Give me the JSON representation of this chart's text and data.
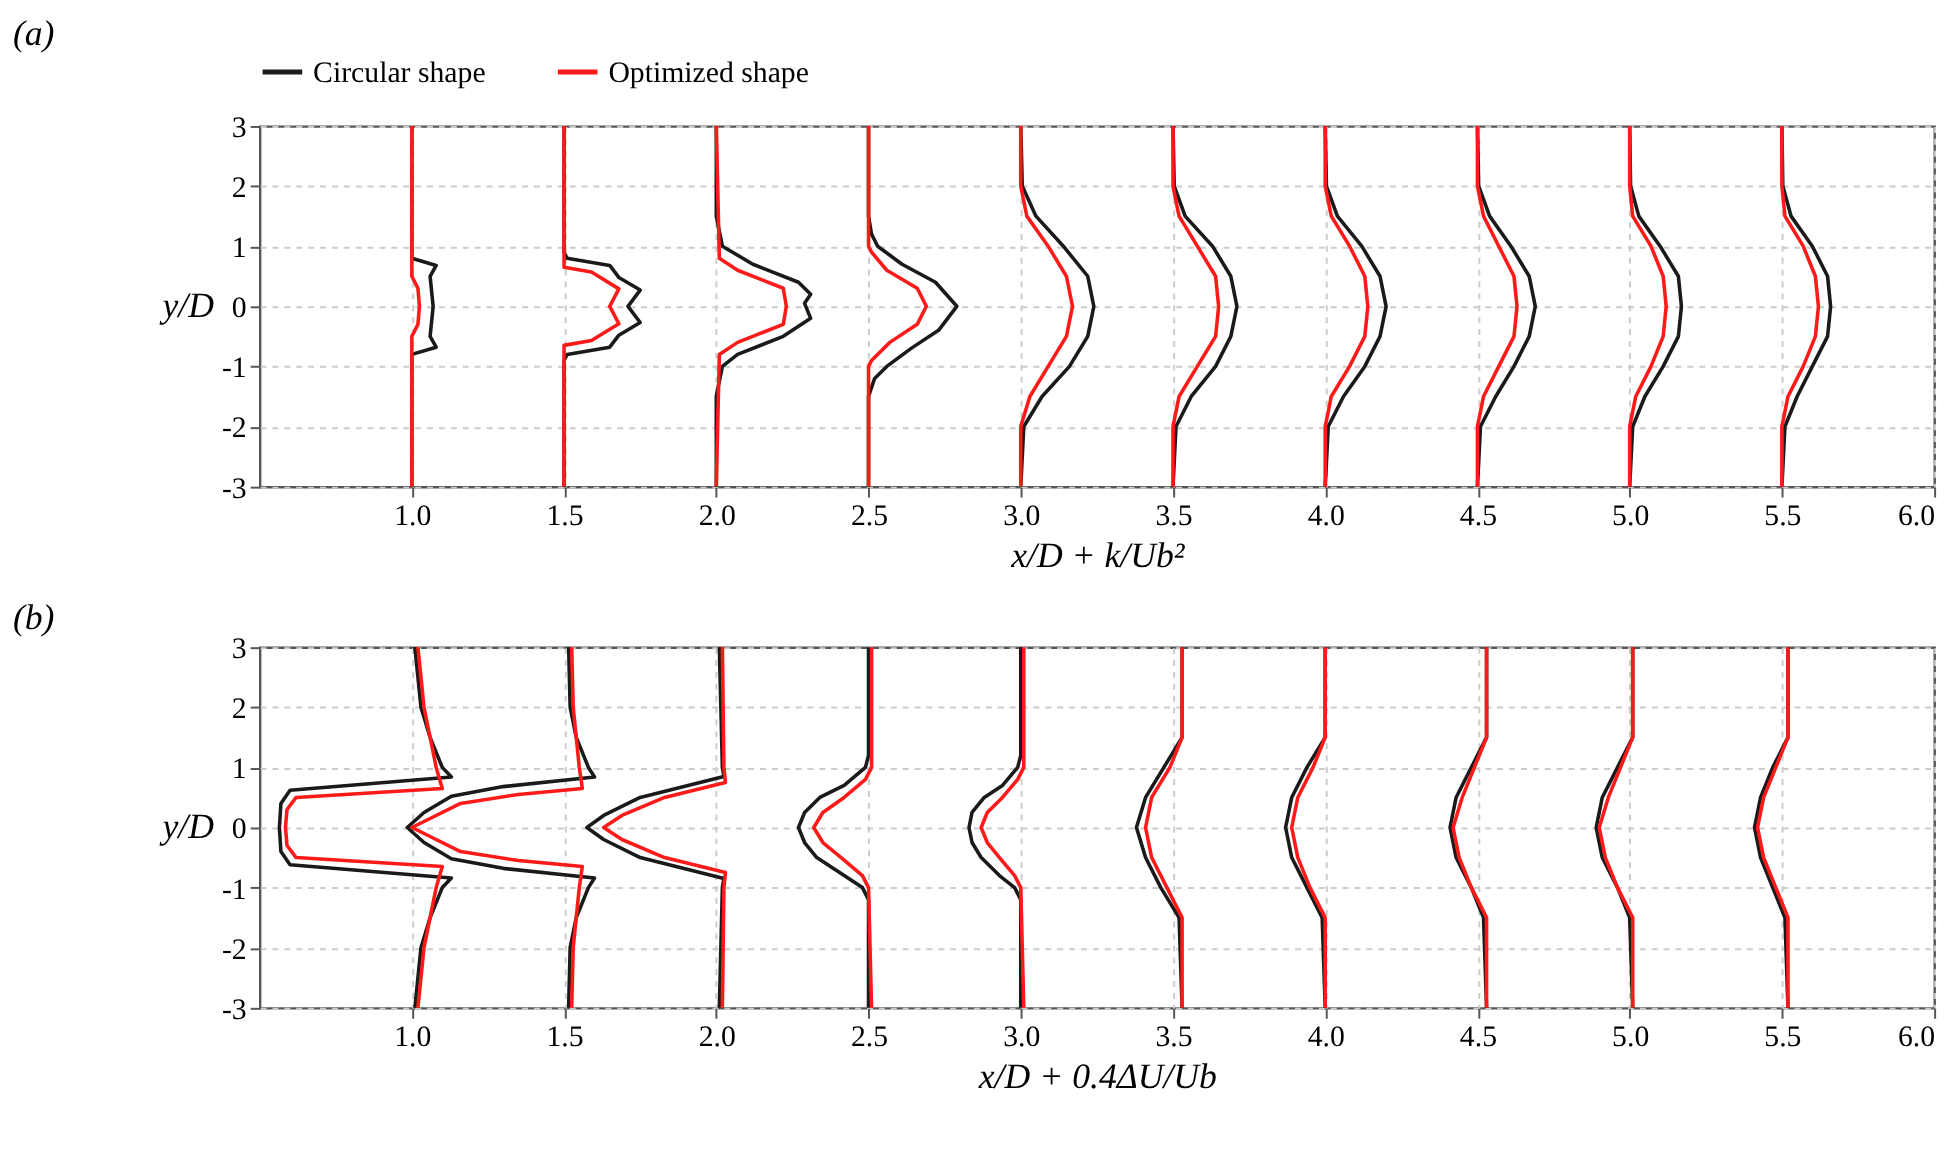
{
  "chart_data": [
    {
      "type": "line",
      "title": "(a)",
      "xlabel": "x/D + k/Ub²",
      "ylabel": "y/D",
      "xlim": [
        0.5,
        6.0
      ],
      "xticks": [
        {
          "value": 1,
          "label": "1.0"
        },
        1.5,
        {
          "value": 2,
          "label": "2.0"
        },
        2.5,
        {
          "value": 3,
          "label": "3.0"
        },
        3.5,
        {
          "value": 4,
          "label": "4.0"
        },
        4.5,
        {
          "value": 5,
          "label": "5.0"
        },
        5.5,
        {
          "value": 6,
          "label": "6.0"
        }
      ],
      "ylim": [
        -3,
        3
      ],
      "yticks": [
        -3,
        -2,
        -1,
        0,
        1,
        2,
        3
      ],
      "grid": true,
      "legend": "top",
      "line_style": "solid",
      "series": [
        {
          "name": "Circular shape",
          "color": "#1a1a1a",
          "x": [
            1.0,
            1.0,
            1.08,
            1.06,
            1.07,
            1.06,
            1.08,
            1.0,
            1.0,
            null,
            1.5,
            1.5,
            1.51,
            1.65,
            1.68,
            1.75,
            1.71,
            1.75,
            1.68,
            1.65,
            1.51,
            1.5,
            1.5,
            null,
            2.0,
            2.0,
            2.02,
            2.12,
            2.27,
            2.31,
            2.29,
            2.31,
            2.22,
            2.07,
            2.02,
            2.0,
            2.0,
            null,
            2.5,
            2.5,
            2.51,
            2.53,
            2.61,
            2.72,
            2.79,
            2.73,
            2.64,
            2.56,
            2.52,
            2.5,
            2.5,
            null,
            3.0,
            3.005,
            3.05,
            3.14,
            3.22,
            3.24,
            3.22,
            3.16,
            3.07,
            3.01,
            3.0,
            null,
            3.5,
            3.504,
            3.54,
            3.63,
            3.69,
            3.71,
            3.69,
            3.64,
            3.56,
            3.51,
            3.5,
            null,
            4.0,
            4.004,
            4.04,
            4.12,
            4.18,
            4.2,
            4.18,
            4.13,
            4.06,
            4.01,
            4.0,
            null,
            4.5,
            4.504,
            4.54,
            4.61,
            4.67,
            4.69,
            4.67,
            4.62,
            4.56,
            4.51,
            4.5,
            null,
            5.0,
            5.003,
            5.03,
            5.1,
            5.16,
            5.17,
            5.16,
            5.11,
            5.05,
            5.01,
            5.0,
            null,
            5.5,
            5.503,
            5.53,
            5.6,
            5.65,
            5.66,
            5.65,
            5.6,
            5.55,
            5.51,
            5.5
          ],
          "values": [
            3,
            0.8,
            0.68,
            0.5,
            0,
            -0.5,
            -0.68,
            -0.8,
            -3,
            null,
            3,
            0.9,
            0.8,
            0.68,
            0.48,
            0.27,
            0,
            -0.27,
            -0.48,
            -0.68,
            -0.8,
            -0.9,
            -3,
            null,
            3,
            1.5,
            1,
            0.7,
            0.4,
            0.2,
            0.05,
            -0.2,
            -0.5,
            -0.8,
            -1,
            -1.5,
            -3,
            null,
            3,
            1.5,
            1.2,
            1,
            0.7,
            0.4,
            0,
            -0.4,
            -0.7,
            -1,
            -1.2,
            -1.5,
            -3,
            null,
            3,
            2,
            1.5,
            1,
            0.5,
            0,
            -0.5,
            -1,
            -1.5,
            -2,
            -3,
            null,
            3,
            2,
            1.5,
            1,
            0.5,
            0,
            -0.5,
            -1,
            -1.5,
            -2,
            -3,
            null,
            3,
            2,
            1.5,
            1,
            0.5,
            0,
            -0.5,
            -1,
            -1.5,
            -2,
            -3,
            null,
            3,
            2,
            1.5,
            1,
            0.5,
            0,
            -0.5,
            -1,
            -1.5,
            -2,
            -3,
            null,
            3,
            2,
            1.5,
            1,
            0.5,
            0,
            -0.5,
            -1,
            -1.5,
            -2,
            -3,
            null,
            3,
            2,
            1.5,
            1,
            0.5,
            0,
            -0.5,
            -1,
            -1.5,
            -2,
            -3
          ]
        },
        {
          "name": "Optimized shape",
          "color": "#ff1a1a",
          "x": [
            1.0,
            1.0,
            1.02,
            1.025,
            1.02,
            1.0,
            1.0,
            null,
            1.5,
            1.5,
            1.59,
            1.68,
            1.65,
            1.68,
            1.59,
            1.5,
            1.5,
            null,
            2.0,
            2.01,
            2.07,
            2.22,
            2.23,
            2.22,
            2.07,
            2.01,
            2.0,
            null,
            2.5,
            2.5,
            2.51,
            2.56,
            2.66,
            2.69,
            2.66,
            2.57,
            2.51,
            2.5,
            2.5,
            null,
            3.0,
            3.0,
            3.02,
            3.09,
            3.15,
            3.17,
            3.15,
            3.09,
            3.03,
            3.0,
            3.0,
            null,
            3.5,
            3.5,
            3.52,
            3.58,
            3.64,
            3.65,
            3.64,
            3.58,
            3.52,
            3.5,
            3.5,
            null,
            4.0,
            4.0,
            4.02,
            4.08,
            4.13,
            4.14,
            4.13,
            4.08,
            4.02,
            4.0,
            4.0,
            null,
            4.5,
            4.5,
            4.52,
            4.57,
            4.62,
            4.63,
            4.62,
            4.57,
            4.52,
            4.5,
            4.5,
            null,
            5.0,
            5.0,
            5.01,
            5.07,
            5.11,
            5.12,
            5.11,
            5.07,
            5.02,
            5.0,
            5.0,
            null,
            5.5,
            5.5,
            5.51,
            5.57,
            5.61,
            5.62,
            5.61,
            5.57,
            5.52,
            5.5,
            5.5
          ],
          "values": [
            3,
            0.5,
            0.3,
            0,
            -0.3,
            -0.5,
            -3,
            null,
            3,
            0.65,
            0.57,
            0.29,
            0,
            -0.29,
            -0.57,
            -0.65,
            -3,
            null,
            3,
            0.8,
            0.6,
            0.3,
            0,
            -0.3,
            -0.6,
            -0.8,
            -3,
            null,
            3,
            1,
            0.9,
            0.6,
            0.3,
            0,
            -0.3,
            -0.6,
            -0.9,
            -1,
            -3,
            null,
            3,
            2,
            1.5,
            1,
            0.5,
            0,
            -0.5,
            -1,
            -1.5,
            -2,
            -3,
            null,
            3,
            2,
            1.5,
            1,
            0.5,
            0,
            -0.5,
            -1,
            -1.5,
            -2,
            -3,
            null,
            3,
            2,
            1.5,
            1,
            0.5,
            0,
            -0.5,
            -1,
            -1.5,
            -2,
            -3,
            null,
            3,
            2,
            1.5,
            1,
            0.5,
            0,
            -0.5,
            -1,
            -1.5,
            -2,
            -3,
            null,
            3,
            2,
            1.5,
            1,
            0.5,
            0,
            -0.5,
            -1,
            -1.5,
            -2,
            -3,
            null,
            3,
            2,
            1.5,
            1,
            0.5,
            0,
            -0.5,
            -1,
            -1.5,
            -2,
            -3
          ]
        }
      ]
    },
    {
      "type": "line",
      "title": "(b)",
      "xlabel": "x/D + 0.4ΔU/Ub",
      "ylabel": "y/D",
      "xlim": [
        0.5,
        6.0
      ],
      "xticks": [
        {
          "value": 1,
          "label": "1.0"
        },
        1.5,
        {
          "value": 2,
          "label": "2.0"
        },
        2.5,
        {
          "value": 3,
          "label": "3.0"
        },
        3.5,
        {
          "value": 4,
          "label": "4.0"
        },
        4.5,
        {
          "value": 5,
          "label": "5.0"
        },
        5.5,
        {
          "value": 6,
          "label": "6.0"
        }
      ],
      "ylim": [
        -3,
        3
      ],
      "yticks": [
        -3,
        -2,
        -1,
        0,
        1,
        2,
        3
      ],
      "grid": true,
      "line_style": "solid",
      "series": [
        {
          "color": "#1a1a1a",
          "x": [
            1.01,
            1.03,
            1.06,
            1.1,
            1.13,
            0.6,
            0.57,
            0.565,
            0.57,
            0.6,
            1.13,
            1.1,
            1.06,
            1.03,
            1.01,
            null,
            1.515,
            1.52,
            1.54,
            1.58,
            1.6,
            1.3,
            1.13,
            1.04,
            0.985,
            1.04,
            1.13,
            1.3,
            1.6,
            1.58,
            1.54,
            1.52,
            1.515,
            null,
            2.01,
            2.02,
            2.025,
            1.75,
            1.63,
            1.575,
            1.63,
            1.75,
            2.025,
            2.02,
            2.01,
            null,
            2.5,
            2.5,
            2.49,
            2.42,
            2.34,
            2.29,
            2.27,
            2.29,
            2.33,
            2.42,
            2.48,
            2.5,
            2.5,
            null,
            3.0,
            3.0,
            2.99,
            2.94,
            2.88,
            2.84,
            2.83,
            2.84,
            2.87,
            2.93,
            2.98,
            3.0,
            3.0,
            null,
            3.53,
            3.53,
            3.47,
            3.41,
            3.38,
            3.41,
            3.46,
            3.52,
            3.53,
            null,
            4.0,
            4.0,
            3.94,
            3.89,
            3.87,
            3.89,
            3.94,
            3.99,
            4.0,
            null,
            4.53,
            4.53,
            4.48,
            4.43,
            4.41,
            4.43,
            4.48,
            4.52,
            4.53,
            null,
            5.01,
            5.01,
            4.96,
            4.91,
            4.89,
            4.91,
            4.96,
            5.0,
            5.01,
            null,
            5.52,
            5.52,
            5.47,
            5.43,
            5.41,
            5.43,
            5.47,
            5.51,
            5.52
          ],
          "values": [
            3,
            2,
            1.5,
            1,
            0.84,
            0.62,
            0.4,
            0,
            -0.4,
            -0.62,
            -0.84,
            -1,
            -1.5,
            -2,
            -3,
            null,
            3,
            2,
            1.5,
            1,
            0.84,
            0.68,
            0.52,
            0.25,
            0,
            -0.25,
            -0.52,
            -0.68,
            -0.84,
            -1,
            -1.5,
            -2,
            -3,
            null,
            3,
            1,
            0.85,
            0.5,
            0.2,
            0,
            -0.2,
            -0.5,
            -0.85,
            -1,
            -3,
            null,
            3,
            1.2,
            1,
            0.7,
            0.5,
            0.25,
            0,
            -0.25,
            -0.5,
            -0.8,
            -1,
            -1.2,
            -3,
            null,
            3,
            1.2,
            1,
            0.7,
            0.5,
            0.25,
            0,
            -0.25,
            -0.5,
            -0.8,
            -1,
            -1.2,
            -3,
            null,
            3,
            1.5,
            1,
            0.5,
            0,
            -0.5,
            -1,
            -1.5,
            -3,
            null,
            3,
            1.5,
            1,
            0.5,
            0,
            -0.5,
            -1,
            -1.5,
            -3,
            null,
            3,
            1.5,
            1,
            0.5,
            0,
            -0.5,
            -1,
            -1.5,
            -3,
            null,
            3,
            1.5,
            1,
            0.5,
            0,
            -0.5,
            -1,
            -1.5,
            -3,
            null,
            3,
            1.5,
            1,
            0.5,
            0,
            -0.5,
            -1,
            -1.5,
            -3
          ]
        },
        {
          "color": "#ff1a1a",
          "x": [
            1.02,
            1.04,
            1.06,
            1.08,
            1.1,
            0.62,
            0.59,
            0.585,
            0.59,
            0.62,
            1.1,
            1.08,
            1.06,
            1.04,
            1.02,
            null,
            1.525,
            1.53,
            1.54,
            1.55,
            1.56,
            1.35,
            1.16,
            1.06,
            1.0,
            1.06,
            1.16,
            1.35,
            1.56,
            1.55,
            1.54,
            1.53,
            1.525,
            null,
            2.02,
            2.025,
            2.03,
            1.83,
            1.69,
            1.63,
            1.69,
            1.83,
            2.03,
            2.025,
            2.02,
            null,
            2.51,
            2.51,
            2.49,
            2.42,
            2.35,
            2.32,
            2.35,
            2.41,
            2.48,
            2.5,
            2.51,
            null,
            3.01,
            3.01,
            2.99,
            2.94,
            2.89,
            2.87,
            2.89,
            2.93,
            2.98,
            3.0,
            3.01,
            null,
            3.53,
            3.53,
            3.49,
            3.43,
            3.41,
            3.43,
            3.48,
            3.53,
            3.53,
            null,
            4.0,
            4.0,
            3.96,
            3.91,
            3.89,
            3.91,
            3.95,
            4.0,
            4.0,
            null,
            4.53,
            4.53,
            4.49,
            4.45,
            4.42,
            4.44,
            4.48,
            4.53,
            4.53,
            null,
            5.01,
            5.01,
            4.97,
            4.93,
            4.9,
            4.92,
            4.96,
            5.01,
            5.01,
            null,
            5.52,
            5.52,
            5.48,
            5.44,
            5.42,
            5.44,
            5.48,
            5.52,
            5.52
          ],
          "values": [
            3,
            2,
            1.5,
            1,
            0.65,
            0.5,
            0.3,
            0,
            -0.3,
            -0.5,
            -0.65,
            -1,
            -1.5,
            -2,
            -3,
            null,
            3,
            2,
            1.5,
            1,
            0.65,
            0.55,
            0.4,
            0.15,
            0,
            -0.15,
            -0.4,
            -0.55,
            -0.65,
            -1,
            -1.5,
            -2,
            -3,
            null,
            3,
            1,
            0.75,
            0.5,
            0.2,
            0,
            -0.2,
            -0.5,
            -0.75,
            -1,
            -3,
            null,
            3,
            1,
            0.8,
            0.5,
            0.25,
            0,
            -0.25,
            -0.5,
            -0.8,
            -1,
            -3,
            null,
            3,
            1,
            0.8,
            0.5,
            0.25,
            0,
            -0.25,
            -0.5,
            -0.8,
            -1,
            -3,
            null,
            3,
            1.5,
            1,
            0.5,
            0,
            -0.5,
            -1,
            -1.5,
            -3,
            null,
            3,
            1.5,
            1,
            0.5,
            0,
            -0.5,
            -1,
            -1.5,
            -3,
            null,
            3,
            1.5,
            1,
            0.5,
            0,
            -0.5,
            -1,
            -1.5,
            -3,
            null,
            3,
            1.5,
            1,
            0.5,
            0,
            -0.5,
            -1,
            -1.5,
            -3,
            null,
            3,
            1.5,
            1,
            0.5,
            0,
            -0.5,
            -1,
            -1.5,
            -3
          ]
        }
      ]
    }
  ]
}
